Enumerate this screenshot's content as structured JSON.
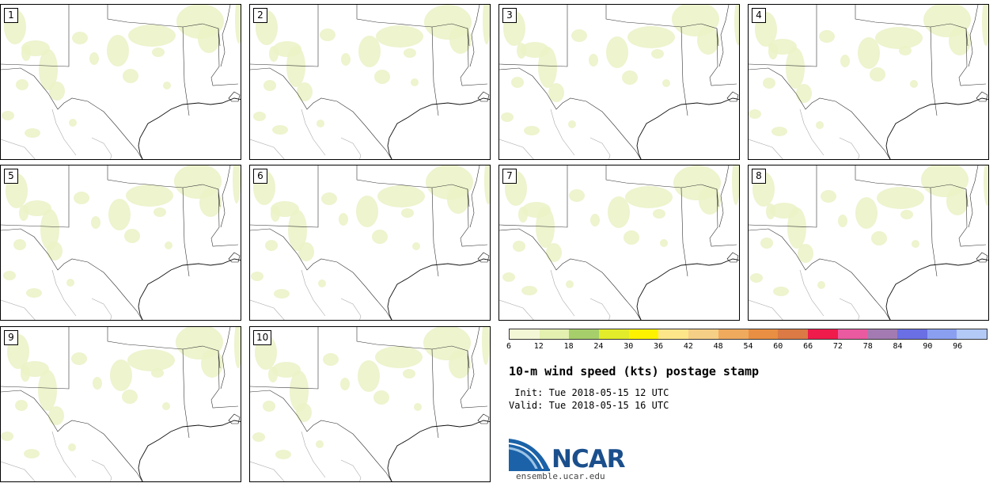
{
  "panels": [
    {
      "label": "1"
    },
    {
      "label": "2"
    },
    {
      "label": "3"
    },
    {
      "label": "4"
    },
    {
      "label": "5"
    },
    {
      "label": "6"
    },
    {
      "label": "7"
    },
    {
      "label": "8"
    },
    {
      "label": "9"
    },
    {
      "label": "10"
    }
  ],
  "colorbar": {
    "ticks": [
      "6",
      "12",
      "18",
      "24",
      "30",
      "36",
      "42",
      "48",
      "54",
      "60",
      "66",
      "72",
      "78",
      "84",
      "90",
      "96"
    ],
    "colors": [
      "#f3f7d6",
      "#e3f0b0",
      "#a6cf6b",
      "#e2ec2a",
      "#fff200",
      "#fde68a",
      "#f6cf86",
      "#efaa5e",
      "#e98f43",
      "#db7a45",
      "#ee1b4b",
      "#e95aa0",
      "#a37bb2",
      "#6a6fe3",
      "#8a9ff0",
      "#b3c9f6"
    ]
  },
  "title": "10-m wind speed (kts) postage stamp",
  "init": " Init: Tue 2018-05-15 12 UTC",
  "valid": "Valid: Tue 2018-05-15 16 UTC",
  "logo": {
    "name": "NCAR",
    "url": "ensemble.ucar.edu"
  }
}
